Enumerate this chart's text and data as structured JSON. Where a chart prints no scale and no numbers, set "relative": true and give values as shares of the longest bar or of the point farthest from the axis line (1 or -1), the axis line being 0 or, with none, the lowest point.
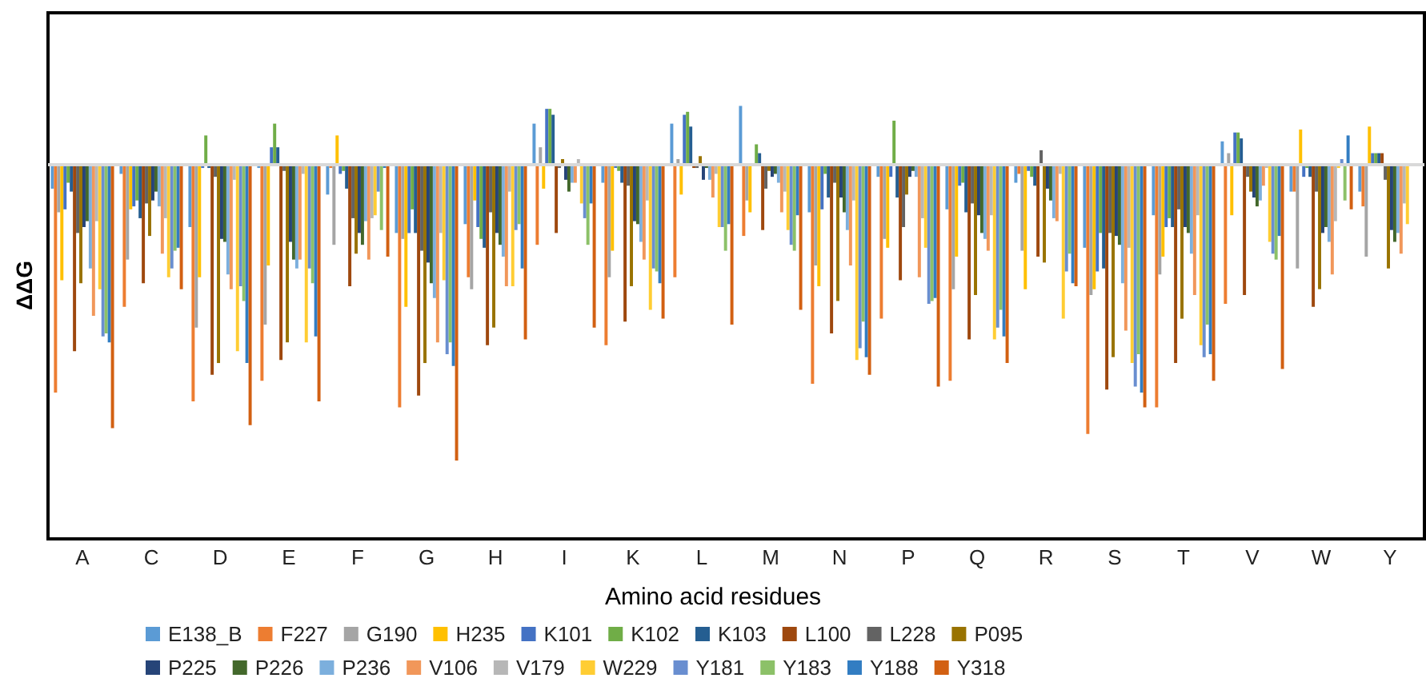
{
  "chart_data": {
    "type": "bar",
    "relative": true,
    "xlabel": "Amino acid residues",
    "ylabel": "ΔΔG",
    "legend": "bottom",
    "grid": false,
    "ref_lines": [
      {
        "axis": "y",
        "value": 0,
        "color": "#d9d9d9"
      }
    ],
    "categories": [
      "A",
      "C",
      "D",
      "E",
      "F",
      "G",
      "H",
      "I",
      "K",
      "L",
      "M",
      "N",
      "P",
      "Q",
      "R",
      "S",
      "T",
      "V",
      "W",
      "Y"
    ],
    "series": [
      {
        "name": "E138_B",
        "color": "#5b9bd5",
        "values": [
          -0.08,
          -0.03,
          -0.21,
          -0.01,
          -0.1,
          -0.23,
          -0.2,
          0.14,
          -0.06,
          0.14,
          0.2,
          -0.16,
          -0.04,
          -0.15,
          -0.06,
          -0.28,
          -0.17,
          0.08,
          -0.09,
          -0.09
        ]
      },
      {
        "name": "F227",
        "color": "#ed7d31",
        "values": [
          -0.77,
          -0.48,
          -0.8,
          -0.73,
          -0.01,
          -0.82,
          -0.38,
          -0.27,
          -0.61,
          -0.38,
          -0.24,
          -0.74,
          -0.52,
          -0.73,
          -0.03,
          -0.91,
          -0.82,
          -0.47,
          -0.09,
          -0.14
        ]
      },
      {
        "name": "G190",
        "color": "#a5a5a5",
        "values": [
          -0.16,
          -0.32,
          -0.55,
          -0.54,
          -0.27,
          -0.25,
          -0.42,
          0.06,
          -0.38,
          0.02,
          -0.12,
          -0.34,
          -0.25,
          -0.42,
          -0.29,
          -0.44,
          -0.37,
          0.04,
          -0.35,
          -0.31
        ]
      },
      {
        "name": "H235",
        "color": "#ffc000",
        "values": [
          -0.39,
          -0.15,
          -0.38,
          -0.34,
          0.1,
          -0.48,
          -0.12,
          -0.08,
          -0.29,
          -0.1,
          -0.16,
          -0.41,
          -0.28,
          -0.31,
          -0.42,
          -0.42,
          -0.31,
          -0.17,
          0.12,
          0.13
        ]
      },
      {
        "name": "K101",
        "color": "#4472c4",
        "values": [
          -0.15,
          -0.14,
          -0.01,
          0.06,
          -0.03,
          -0.23,
          -0.21,
          0.19,
          -0.01,
          0.17,
          null,
          -0.15,
          -0.04,
          -0.07,
          -0.02,
          -0.36,
          -0.21,
          0.11,
          -0.04,
          0.04
        ]
      },
      {
        "name": "K102",
        "color": "#70ad47",
        "values": [
          -0.06,
          -0.12,
          0.1,
          0.14,
          -0.02,
          -0.15,
          -0.25,
          0.19,
          -0.02,
          0.18,
          0.07,
          -0.03,
          0.15,
          -0.06,
          -0.04,
          -0.23,
          -0.18,
          0.11,
          -0.01,
          0.04
        ]
      },
      {
        "name": "K103",
        "color": "#255e91",
        "values": [
          -0.09,
          -0.18,
          -0.01,
          0.06,
          -0.08,
          -0.23,
          -0.28,
          0.17,
          -0.06,
          0.13,
          0.04,
          -0.11,
          -0.11,
          -0.16,
          -0.07,
          -0.35,
          -0.21,
          0.09,
          -0.04,
          0.04
        ]
      },
      {
        "name": "L100",
        "color": "#9e480e",
        "values": [
          -0.63,
          -0.4,
          -0.71,
          -0.66,
          -0.41,
          -0.78,
          -0.61,
          -0.23,
          -0.53,
          -0.01,
          -0.22,
          -0.57,
          -0.39,
          -0.59,
          -0.31,
          -0.76,
          -0.67,
          -0.44,
          -0.48,
          0.04
        ]
      },
      {
        "name": "L228",
        "color": "#636363",
        "values": [
          -0.23,
          -0.13,
          -0.04,
          -0.02,
          -0.18,
          -0.29,
          -0.16,
          -0.01,
          -0.07,
          -0.01,
          -0.08,
          -0.06,
          -0.21,
          -0.13,
          0.05,
          -0.23,
          -0.15,
          -0.04,
          -0.09,
          -0.05
        ]
      },
      {
        "name": "P095",
        "color": "#997300",
        "values": [
          -0.4,
          -0.24,
          -0.67,
          -0.6,
          -0.3,
          -0.67,
          -0.55,
          0.02,
          -0.41,
          0.03,
          -0.02,
          -0.46,
          -0.1,
          -0.44,
          -0.33,
          -0.65,
          -0.52,
          -0.09,
          -0.42,
          -0.35
        ]
      },
      {
        "name": "P225",
        "color": "#264478",
        "values": [
          -0.21,
          -0.12,
          -0.25,
          -0.26,
          -0.23,
          -0.33,
          -0.23,
          -0.05,
          -0.19,
          -0.05,
          -0.04,
          -0.11,
          -0.04,
          -0.17,
          -0.08,
          -0.24,
          -0.21,
          -0.11,
          -0.23,
          -0.22
        ]
      },
      {
        "name": "P226",
        "color": "#43682b",
        "values": [
          -0.19,
          -0.09,
          -0.26,
          -0.32,
          -0.27,
          -0.4,
          -0.27,
          -0.09,
          -0.2,
          -0.01,
          -0.03,
          -0.16,
          -0.02,
          -0.23,
          -0.12,
          -0.27,
          -0.23,
          -0.14,
          -0.21,
          -0.26
        ]
      },
      {
        "name": "P236",
        "color": "#7cafdd",
        "values": [
          -0.35,
          -0.14,
          -0.37,
          -0.35,
          -0.19,
          -0.45,
          -0.31,
          -0.06,
          -0.26,
          -0.05,
          -0.06,
          -0.22,
          -0.04,
          -0.25,
          -0.18,
          -0.4,
          -0.3,
          -0.12,
          -0.26,
          -0.23
        ]
      },
      {
        "name": "V106",
        "color": "#f1975a",
        "values": [
          -0.51,
          -0.3,
          -0.42,
          -0.32,
          -0.32,
          -0.6,
          -0.41,
          -0.06,
          -0.32,
          -0.11,
          -0.16,
          -0.34,
          -0.38,
          -0.29,
          -0.19,
          -0.56,
          -0.44,
          -0.07,
          -0.37,
          -0.3
        ]
      },
      {
        "name": "V179",
        "color": "#b7b7b7",
        "values": [
          -0.19,
          -0.18,
          -0.05,
          -0.03,
          -0.18,
          -0.23,
          -0.09,
          0.02,
          -0.12,
          -0.03,
          -0.09,
          -0.12,
          -0.18,
          -0.17,
          -0.03,
          -0.28,
          -0.17,
          -0.01,
          -0.19,
          -0.13
        ]
      },
      {
        "name": "W229",
        "color": "#ffcd33",
        "values": [
          -0.42,
          -0.38,
          -0.63,
          -0.6,
          -0.17,
          -0.39,
          -0.41,
          -0.13,
          -0.49,
          -0.21,
          -0.22,
          -0.66,
          -0.28,
          -0.59,
          -0.52,
          -0.67,
          -0.61,
          -0.26,
          -0.01,
          -0.2
        ]
      },
      {
        "name": "Y181",
        "color": "#698ed0",
        "values": [
          -0.58,
          -0.35,
          -0.41,
          -0.35,
          -0.09,
          -0.64,
          -0.22,
          -0.18,
          -0.35,
          -0.21,
          -0.27,
          -0.62,
          -0.47,
          -0.55,
          -0.36,
          -0.75,
          -0.65,
          -0.3,
          0.02,
          0
        ]
      },
      {
        "name": "Y183",
        "color": "#8cc168",
        "values": [
          -0.57,
          -0.29,
          -0.46,
          -0.4,
          -0.22,
          -0.6,
          -0.2,
          -0.27,
          -0.36,
          -0.29,
          -0.29,
          -0.53,
          -0.46,
          -0.49,
          -0.3,
          -0.64,
          -0.54,
          -0.32,
          -0.12,
          0
        ]
      },
      {
        "name": "Y188",
        "color": "#327dc2",
        "values": [
          -0.6,
          -0.28,
          -0.67,
          -0.58,
          -0.01,
          -0.68,
          -0.35,
          -0.13,
          -0.4,
          -0.2,
          -0.17,
          -0.65,
          -0.45,
          -0.58,
          -0.4,
          -0.77,
          -0.64,
          -0.24,
          0.1,
          0
        ]
      },
      {
        "name": "Y318",
        "color": "#d26012",
        "values": [
          -0.89,
          -0.42,
          -0.88,
          -0.8,
          -0.31,
          -1,
          -0.59,
          -0.55,
          -0.52,
          -0.54,
          -0.49,
          -0.71,
          -0.75,
          -0.67,
          -0.41,
          -0.82,
          -0.73,
          -0.69,
          -0.15,
          0
        ]
      }
    ]
  }
}
